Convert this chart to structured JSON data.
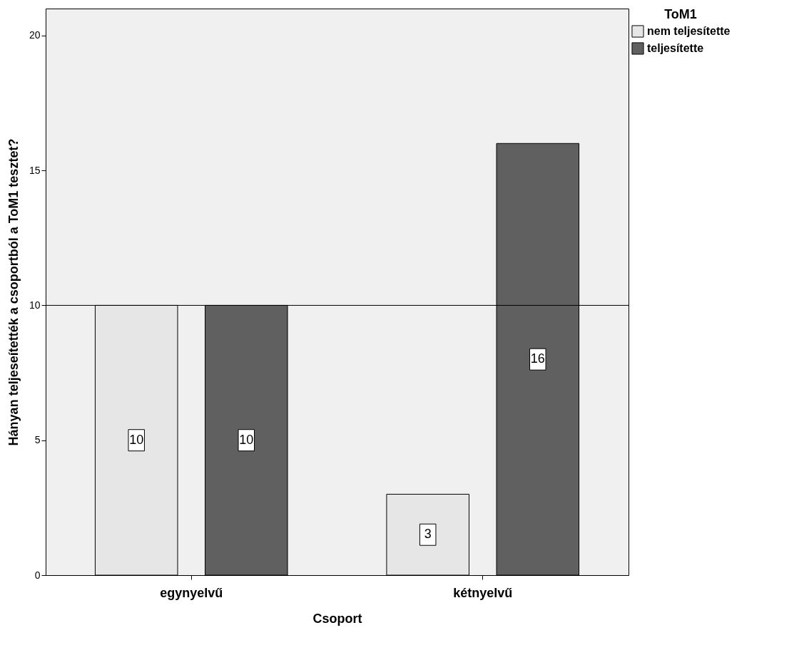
{
  "chart_data": {
    "type": "bar",
    "xlabel": "Csoport",
    "ylabel": "Hányan teljeseítették a csoportból a ToM1 tesztet?",
    "legend_title": "ToM1",
    "categories": [
      "egynyelvű",
      "kétnyelvű"
    ],
    "series": [
      {
        "name": "nem teljesítette",
        "color": "#e6e6e6",
        "values": [
          10,
          3
        ]
      },
      {
        "name": "teljesítette",
        "color": "#606060",
        "values": [
          10,
          16
        ]
      }
    ],
    "ylim": [
      0,
      21
    ],
    "yticks": [
      0,
      5,
      10,
      15,
      20
    ],
    "grid": false,
    "legend": "top right",
    "data_labels": true,
    "ref_lines": [
      {
        "axis": "y",
        "value": 10,
        "color": "#000000"
      }
    ]
  }
}
